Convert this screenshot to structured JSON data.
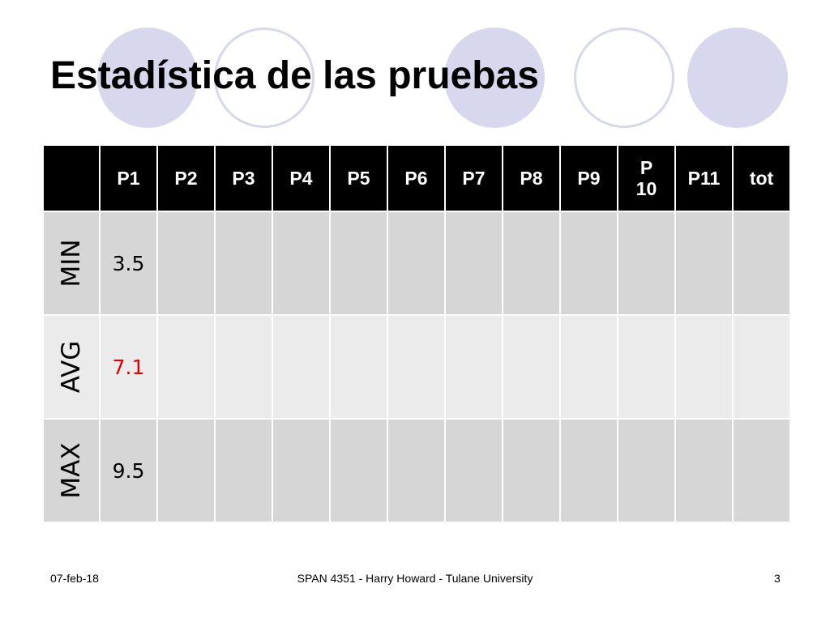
{
  "slide": {
    "title": "Estadística de las pruebas",
    "colors": {
      "circle_fill": "#d7d7ee",
      "header_bg": "#000000",
      "row_dark": "#d6d6d6",
      "row_light": "#ebebeb",
      "highlight": "#e00000"
    }
  },
  "table": {
    "headers": [
      "",
      "P1",
      "P2",
      "P3",
      "P4",
      "P5",
      "P6",
      "P7",
      "P8",
      "P9",
      "P10",
      "P11",
      "tot"
    ],
    "rows": [
      {
        "label": "MIN",
        "values": [
          "3.5",
          "",
          "",
          "",
          "",
          "",
          "",
          "",
          "",
          "",
          "",
          ""
        ]
      },
      {
        "label": "AVG",
        "values": [
          "7.1",
          "",
          "",
          "",
          "",
          "",
          "",
          "",
          "",
          "",
          "",
          ""
        ]
      },
      {
        "label": "MAX",
        "values": [
          "9.5",
          "",
          "",
          "",
          "",
          "",
          "",
          "",
          "",
          "",
          "",
          ""
        ]
      }
    ]
  },
  "footer": {
    "date": "07-feb-18",
    "center": "SPAN 4351 - Harry Howard - Tulane University",
    "page": "3"
  }
}
